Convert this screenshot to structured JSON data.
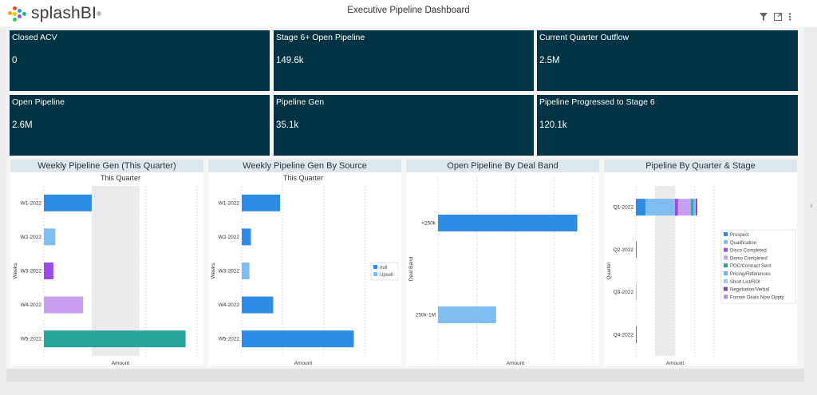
{
  "app": {
    "logo_text": "splashBI",
    "logo_reg": "®",
    "dashboard_title": "Executive Pipeline Dashboard"
  },
  "toolbar": {
    "filter_icon": "filter-icon",
    "expand_icon": "expand-icon",
    "menu_icon": "kebab-menu-icon"
  },
  "kpis": [
    {
      "title": "Closed ACV",
      "value": "0"
    },
    {
      "title": "Stage 6+ Open Pipeline",
      "value": "149.6k"
    },
    {
      "title": "Current Quarter Outflow",
      "value": "2.5M"
    },
    {
      "title": "Open Pipeline",
      "value": "2.6M"
    },
    {
      "title": "Pipeline Gen",
      "value": "35.1k"
    },
    {
      "title": "Pipeline Progressed to Stage 6",
      "value": "120.1k"
    }
  ],
  "colors": {
    "kpi_bg": "#003344",
    "panel_header": "#dde7ee",
    "bar_blue": "#2f8ce5",
    "bar_lightblue": "#7fbcef",
    "bar_purple": "#9b4de6",
    "bar_lavender": "#c9a0f0",
    "bar_teal": "#26a69a"
  },
  "chart_data": [
    {
      "panel_title": "Weekly Pipeline Gen (This Quarter)",
      "type": "bar",
      "orientation": "horizontal",
      "title": "This Quarter",
      "xlabel": "Amount",
      "ylabel": "Weeks",
      "categories": [
        "W1-2022",
        "W2-2022",
        "W3-2022",
        "W4-2022",
        "W5-2022"
      ],
      "values": [
        5.0,
        1.2,
        1.0,
        4.1,
        14.8
      ],
      "bar_colors": [
        "#2f8ce5",
        "#7fbcef",
        "#9b4de6",
        "#c9a0f0",
        "#26a69a"
      ],
      "xlim": [
        0,
        16
      ],
      "shaded_x": [
        5,
        10
      ],
      "grid": true
    },
    {
      "panel_title": "Weekly Pipeline Gen By Source",
      "type": "bar",
      "orientation": "horizontal",
      "title": "This Quarter",
      "xlabel": "Amount",
      "ylabel": "Weeks",
      "categories": [
        "W1-2022",
        "W2-2022",
        "W3-2022",
        "W4-2022",
        "W5-2022"
      ],
      "series": [
        {
          "name": "null",
          "values": [
            0,
            0,
            0,
            0,
            0
          ]
        },
        {
          "name": "Upsell",
          "values": [
            5.0,
            1.2,
            1.0,
            4.1,
            14.6
          ]
        }
      ],
      "series_colors": [
        "#2f8ce5",
        "#7fbcef"
      ],
      "bar_colors": [
        "#2f8ce5",
        "#2f8ce5",
        "#7fbcef",
        "#2f8ce5",
        "#2f8ce5"
      ],
      "xlim": [
        0,
        16
      ],
      "legend": "right",
      "grid": true
    },
    {
      "panel_title": "Open Pipeline By Deal Band",
      "type": "bar",
      "orientation": "horizontal",
      "xlabel": "Amount",
      "ylabel": "Deal Band",
      "categories": [
        "<250k",
        "250k-1M"
      ],
      "values": [
        1.8,
        0.75
      ],
      "bar_colors": [
        "#2f8ce5",
        "#7fbcef"
      ],
      "xlim": [
        0,
        2
      ],
      "grid": true
    },
    {
      "panel_title": "Pipeline By Quarter & Stage",
      "type": "bar",
      "orientation": "horizontal",
      "stacked": true,
      "xlabel": "Amount",
      "ylabel": "Quarter",
      "categories": [
        "Q1-2022",
        "Q2-2022",
        "Q3-2022",
        "Q4-2022"
      ],
      "series": [
        {
          "name": "Prospect",
          "values": [
            0.25,
            0.02,
            0.0,
            0.0
          ]
        },
        {
          "name": "Qualification",
          "values": [
            0.75,
            0.0,
            0.01,
            0.0
          ]
        },
        {
          "name": "Disco Completed",
          "values": [
            0.08,
            0.0,
            0.0,
            0.02
          ]
        },
        {
          "name": "Demo Completed",
          "values": [
            0.33,
            0.0,
            0.0,
            0.0
          ]
        },
        {
          "name": "POC/Contract Sent",
          "values": [
            0.05,
            0.0,
            0.0,
            0.0
          ]
        },
        {
          "name": "Pricing/References",
          "values": [
            0.04,
            0.0,
            0.0,
            0.0
          ]
        },
        {
          "name": "Short List/ROI",
          "values": [
            0.03,
            0.0,
            0.0,
            0.0
          ]
        },
        {
          "name": "Negotiation/Verbal",
          "values": [
            0.04,
            0.0,
            0.0,
            0.0
          ]
        },
        {
          "name": "Former Deals Now Oppty",
          "values": [
            0.0,
            0.0,
            0.0,
            0.0
          ]
        }
      ],
      "series_colors": [
        "#2f8ce5",
        "#7fbcef",
        "#9b4de6",
        "#c9a0f0",
        "#26a69a",
        "#64b5f6",
        "#90caf9",
        "#8e44ad",
        "#b388ff"
      ],
      "xlim": [
        0,
        2
      ],
      "shaded_x": [
        0.5,
        1.0
      ],
      "legend": "right",
      "grid": true
    }
  ]
}
